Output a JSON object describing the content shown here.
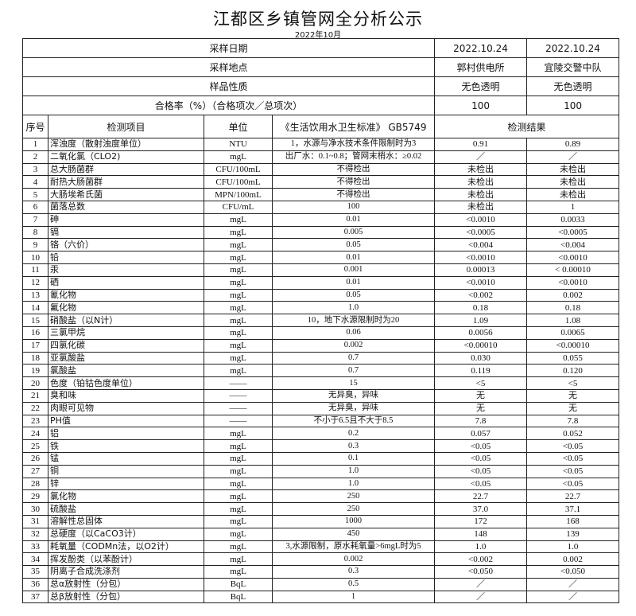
{
  "title": "江都区乡镇管网全分析公示",
  "subtitle": "2022年10月",
  "header_rows": [
    {
      "label": "采样日期",
      "v1": "2022.10.24",
      "v2": "2022.10.24"
    },
    {
      "label": "采样地点",
      "v1": "郭村供电所",
      "v2": "宜陵交警中队"
    },
    {
      "label": "样品性质",
      "v1": "无色透明",
      "v2": "无色透明"
    },
    {
      "label": "合格率（%）（合格项次／总项次）",
      "v1": "100",
      "v2": "100"
    }
  ],
  "columns": {
    "seq": "序号",
    "item": "检测项目",
    "unit": "单位",
    "standard": "《生活饮用水卫生标准》 GB5749",
    "result": "检测结果"
  },
  "rows": [
    {
      "n": "1",
      "item": "浑浊度（散射浊度单位）",
      "unit": "NTU",
      "std": "1，水源与净水技术条件限制时为3",
      "r1": "0.91",
      "r2": "0.89"
    },
    {
      "n": "2",
      "item": "二氧化氯（CLO2)",
      "unit": "mgL",
      "std": "出厂水：0.1~0.8；管网末梢水：≥0.02",
      "r1": "／",
      "r2": "／"
    },
    {
      "n": "3",
      "item": "总大肠菌群",
      "unit": "CFU/100mL",
      "std": "不得检出",
      "r1": "未检出",
      "r2": "未检出"
    },
    {
      "n": "4",
      "item": "耐热大肠菌群",
      "unit": "CFU/100mL",
      "std": "不得检出",
      "r1": "未检出",
      "r2": "未检出"
    },
    {
      "n": "5",
      "item": "大肠埃希氏菌",
      "unit": "MPN/100mL",
      "std": "不得检出",
      "r1": "未检出",
      "r2": "未检出"
    },
    {
      "n": "6",
      "item": "菌落总数",
      "unit": "CFU/mL",
      "std": "100",
      "r1": "未检出",
      "r2": "1"
    },
    {
      "n": "7",
      "item": "砷",
      "unit": "mgL",
      "std": "0.01",
      "r1": "<0.0010",
      "r2": "0.0033"
    },
    {
      "n": "8",
      "item": "镉",
      "unit": "mgL",
      "std": "0.005",
      "r1": "<0.0005",
      "r2": "<0.0005"
    },
    {
      "n": "9",
      "item": "铬（六价）",
      "unit": "mgL",
      "std": "0.05",
      "r1": "<0.004",
      "r2": "<0.004"
    },
    {
      "n": "10",
      "item": "铅",
      "unit": "mgL",
      "std": "0.01",
      "r1": "<0.0010",
      "r2": "<0.0010"
    },
    {
      "n": "11",
      "item": "汞",
      "unit": "mgL",
      "std": "0.001",
      "r1": "0.00013",
      "r2": "< 0.00010"
    },
    {
      "n": "12",
      "item": "硒",
      "unit": "mgL",
      "std": "0.01",
      "r1": "<0.0010",
      "r2": "<0.0010"
    },
    {
      "n": "13",
      "item": "氰化物",
      "unit": "mgL",
      "std": "0.05",
      "r1": "<0.002",
      "r2": "0.002"
    },
    {
      "n": "14",
      "item": "氟化物",
      "unit": "mgL",
      "std": "1.0",
      "r1": "0.18",
      "r2": "0.18"
    },
    {
      "n": "15",
      "item": "硝酸盐（以N计）",
      "unit": "mgL",
      "std": "10，地下水源限制时为20",
      "r1": "1.09",
      "r2": "1.08"
    },
    {
      "n": "16",
      "item": "三氯甲烷",
      "unit": "mgL",
      "std": "0.06",
      "r1": "0.0056",
      "r2": "0.0065"
    },
    {
      "n": "17",
      "item": "四氯化碳",
      "unit": "mgL",
      "std": "0.002",
      "r1": "<0.00010",
      "r2": "<0.00010"
    },
    {
      "n": "18",
      "item": "亚氯酸盐",
      "unit": "mgL",
      "std": "0.7",
      "r1": "0.030",
      "r2": "0.055"
    },
    {
      "n": "19",
      "item": "氯酸盐",
      "unit": "mgL",
      "std": "0.7",
      "r1": "0.119",
      "r2": "0.120"
    },
    {
      "n": "20",
      "item": "色度（铂钴色度单位）",
      "unit": "——",
      "std": "15",
      "r1": "<5",
      "r2": "<5"
    },
    {
      "n": "21",
      "item": "臭和味",
      "unit": "——",
      "std": "无异臭，异味",
      "r1": "无",
      "r2": "无"
    },
    {
      "n": "22",
      "item": "肉眼可见物",
      "unit": "——",
      "std": "无异臭，异味",
      "r1": "无",
      "r2": "无"
    },
    {
      "n": "23",
      "item": "PH值",
      "unit": "——",
      "std": "不小于6.5且不大于8.5",
      "r1": "7.8",
      "r2": "7.8"
    },
    {
      "n": "24",
      "item": "铝",
      "unit": "mgL",
      "std": "0.2",
      "r1": "0.057",
      "r2": "0.052"
    },
    {
      "n": "25",
      "item": "铁",
      "unit": "mgL",
      "std": "0.3",
      "r1": "<0.05",
      "r2": "<0.05"
    },
    {
      "n": "26",
      "item": "锰",
      "unit": "mgL",
      "std": "0.1",
      "r1": "<0.05",
      "r2": "<0.05"
    },
    {
      "n": "27",
      "item": "铜",
      "unit": "mgL",
      "std": "1.0",
      "r1": "<0.05",
      "r2": "<0.05"
    },
    {
      "n": "28",
      "item": "锌",
      "unit": "mgL",
      "std": "1.0",
      "r1": "<0.05",
      "r2": "<0.05"
    },
    {
      "n": "29",
      "item": "氯化物",
      "unit": "mgL",
      "std": "250",
      "r1": "22.7",
      "r2": "22.7"
    },
    {
      "n": "30",
      "item": "硫酸盐",
      "unit": "mgL",
      "std": "250",
      "r1": "37.0",
      "r2": "37.1"
    },
    {
      "n": "31",
      "item": "溶解性总固体",
      "unit": "mgL",
      "std": "1000",
      "r1": "172",
      "r2": "168"
    },
    {
      "n": "32",
      "item": "总硬度（以CaCO3计）",
      "unit": "mgL",
      "std": "450",
      "r1": "148",
      "r2": "139"
    },
    {
      "n": "33",
      "item": "耗氧量（CODMn法，以O2计）",
      "unit": "mgL",
      "std": "3,水源限制，原水耗氧量>6mgL时为5",
      "r1": "1.0",
      "r2": "1.0"
    },
    {
      "n": "34",
      "item": "挥发酚类（以苯酚计）",
      "unit": "mgL",
      "std": "0.002",
      "r1": "<0.002",
      "r2": "0.002"
    },
    {
      "n": "35",
      "item": "阴离子合成洗涤剂",
      "unit": "mgL",
      "std": "0.3",
      "r1": "<0.050",
      "r2": "<0.050"
    },
    {
      "n": "36",
      "item": "总α放射性（分包）",
      "unit": "BqL",
      "std": "0.5",
      "r1": "／",
      "r2": "／"
    },
    {
      "n": "37",
      "item": "总β放射性（分包）",
      "unit": "BqL",
      "std": "1",
      "r1": "／",
      "r2": "／"
    }
  ]
}
